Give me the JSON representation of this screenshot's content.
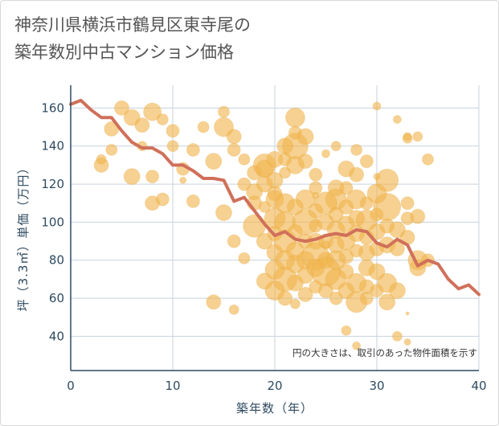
{
  "title": "神奈川県横浜市鶴見区東寺尾の\n築年数別中古マンション価格",
  "chart_data": {
    "type": "scatter",
    "xlabel": "築年数（年）",
    "ylabel": "坪（3.3㎡）単価（万円）",
    "xlim": [
      0,
      40
    ],
    "ylim": [
      22,
      172
    ],
    "xticks": [
      0,
      10,
      20,
      30,
      40
    ],
    "yticks": [
      40,
      60,
      80,
      100,
      120,
      140,
      160
    ],
    "grid": true,
    "note": "円の大きさは、取引のあった物件面積を示す",
    "colors": {
      "bubble": "#f0b54e",
      "line": "#d0705a",
      "grid": "#c8d3de",
      "axis": "#2e4a60"
    },
    "series": [
      {
        "type": "line",
        "x": [
          0,
          1,
          2,
          3,
          4,
          5,
          6,
          7,
          8,
          9,
          10,
          11,
          12,
          13,
          14,
          15,
          16,
          17,
          18,
          19,
          20,
          21,
          22,
          23,
          24,
          25,
          26,
          27,
          28,
          29,
          30,
          31,
          32,
          33,
          34,
          35,
          36,
          37,
          38,
          39,
          40
        ],
        "values": [
          162,
          164,
          159,
          155,
          155,
          148,
          142,
          139,
          139,
          136,
          130,
          130,
          127,
          123,
          123,
          122,
          111,
          113,
          106,
          99,
          93,
          95,
          91,
          90,
          91,
          93,
          94,
          93,
          96,
          95,
          89,
          87,
          91,
          88,
          77,
          80,
          78,
          70,
          65,
          67,
          62
        ]
      },
      {
        "type": "bubble",
        "points": [
          [
            4,
            149,
            9
          ],
          [
            5,
            160,
            9
          ],
          [
            6,
            155,
            10
          ],
          [
            7,
            151,
            9
          ],
          [
            8,
            158,
            11
          ],
          [
            9,
            154,
            7
          ],
          [
            10,
            140,
            7
          ],
          [
            3,
            130,
            9
          ],
          [
            4,
            138,
            7
          ],
          [
            6,
            124,
            10
          ],
          [
            8,
            124,
            8
          ],
          [
            8,
            110,
            9
          ],
          [
            9,
            112,
            8
          ],
          [
            11,
            128,
            8
          ],
          [
            12,
            138,
            8
          ],
          [
            13,
            150,
            7
          ],
          [
            14,
            132,
            10
          ],
          [
            15,
            158,
            7
          ],
          [
            15,
            150,
            12
          ],
          [
            16,
            145,
            9
          ],
          [
            16,
            138,
            8
          ],
          [
            17,
            133,
            7
          ],
          [
            17,
            120,
            8
          ],
          [
            18,
            126,
            9
          ],
          [
            18,
            116,
            10
          ],
          [
            19,
            128,
            11
          ],
          [
            19,
            120,
            10
          ],
          [
            19,
            130,
            14
          ],
          [
            20,
            133,
            10
          ],
          [
            20,
            122,
            10
          ],
          [
            20,
            115,
            9
          ],
          [
            21,
            140,
            10
          ],
          [
            21,
            133,
            8
          ],
          [
            21,
            126,
            7
          ],
          [
            22,
            155,
            12
          ],
          [
            22,
            147,
            8
          ],
          [
            22,
            130,
            11
          ],
          [
            22,
            140,
            16
          ],
          [
            23,
            145,
            10
          ],
          [
            23,
            132,
            9
          ],
          [
            24,
            125,
            8
          ],
          [
            24,
            118,
            8
          ],
          [
            15,
            105,
            10
          ],
          [
            16,
            90,
            8
          ],
          [
            18,
            98,
            14
          ],
          [
            18,
            110,
            9
          ],
          [
            19,
            90,
            10
          ],
          [
            19,
            108,
            7
          ],
          [
            20,
            112,
            11
          ],
          [
            20,
            102,
            13
          ],
          [
            20,
            94,
            9
          ],
          [
            20,
            84,
            10
          ],
          [
            21,
            110,
            12
          ],
          [
            21,
            100,
            13
          ],
          [
            21,
            90,
            14
          ],
          [
            21,
            80,
            12
          ],
          [
            22,
            108,
            10
          ],
          [
            22,
            95,
            9
          ],
          [
            22,
            85,
            11
          ],
          [
            23,
            112,
            12
          ],
          [
            23,
            100,
            16
          ],
          [
            23,
            90,
            9
          ],
          [
            23,
            80,
            11
          ],
          [
            24,
            106,
            9
          ],
          [
            24,
            98,
            8
          ],
          [
            24,
            90,
            10
          ],
          [
            24,
            82,
            17
          ],
          [
            25,
            110,
            14
          ],
          [
            25,
            100,
            10
          ],
          [
            25,
            90,
            9
          ],
          [
            25,
            80,
            10
          ],
          [
            26,
            118,
            10
          ],
          [
            26,
            112,
            13
          ],
          [
            26,
            104,
            9
          ],
          [
            26,
            96,
            11
          ],
          [
            26,
            88,
            10
          ],
          [
            26,
            80,
            12
          ],
          [
            27,
            128,
            10
          ],
          [
            27,
            118,
            8
          ],
          [
            27,
            108,
            9
          ],
          [
            27,
            99,
            10
          ],
          [
            27,
            90,
            11
          ],
          [
            27,
            82,
            9
          ],
          [
            28,
            125,
            9
          ],
          [
            28,
            112,
            12
          ],
          [
            28,
            102,
            10
          ],
          [
            28,
            94,
            10
          ],
          [
            28,
            85,
            8
          ],
          [
            29,
            110,
            8
          ],
          [
            29,
            101,
            13
          ],
          [
            29,
            92,
            9
          ],
          [
            29,
            84,
            10
          ],
          [
            30,
            115,
            12
          ],
          [
            30,
            104,
            8
          ],
          [
            30,
            95,
            10
          ],
          [
            30,
            86,
            9
          ],
          [
            31,
            122,
            14
          ],
          [
            31,
            108,
            17
          ],
          [
            31,
            98,
            9
          ],
          [
            31,
            88,
            10
          ],
          [
            32,
            96,
            10
          ],
          [
            32,
            86,
            9
          ],
          [
            33,
            110,
            8
          ],
          [
            33,
            102,
            8
          ],
          [
            33,
            92,
            9
          ],
          [
            34,
            103,
            9
          ],
          [
            34,
            80,
            12
          ],
          [
            34,
            76,
            10
          ],
          [
            35,
            80,
            8
          ],
          [
            20,
            75,
            12
          ],
          [
            20,
            64,
            12
          ],
          [
            21,
            70,
            15
          ],
          [
            21,
            60,
            9
          ],
          [
            22,
            68,
            10
          ],
          [
            22,
            78,
            11
          ],
          [
            23,
            62,
            9
          ],
          [
            23,
            72,
            10
          ],
          [
            24,
            66,
            8
          ],
          [
            24,
            76,
            11
          ],
          [
            25,
            74,
            18
          ],
          [
            25,
            64,
            9
          ],
          [
            26,
            70,
            13
          ],
          [
            26,
            60,
            8
          ],
          [
            27,
            74,
            9
          ],
          [
            27,
            64,
            10
          ],
          [
            28,
            68,
            12
          ],
          [
            28,
            58,
            13
          ],
          [
            29,
            76,
            10
          ],
          [
            29,
            66,
            9
          ],
          [
            29,
            60,
            8
          ],
          [
            30,
            74,
            10
          ],
          [
            30,
            64,
            8
          ],
          [
            31,
            68,
            12
          ],
          [
            31,
            58,
            10
          ],
          [
            32,
            64,
            10
          ],
          [
            27,
            43,
            6
          ],
          [
            28,
            35,
            5
          ],
          [
            32,
            40,
            6
          ],
          [
            28,
            138,
            7
          ],
          [
            29,
            132,
            8
          ],
          [
            30,
            161,
            5
          ],
          [
            32,
            154,
            5
          ],
          [
            33,
            144,
            6
          ],
          [
            33,
            145,
            5
          ],
          [
            34,
            145,
            6
          ],
          [
            35,
            133,
            7
          ],
          [
            24,
            114,
            4
          ],
          [
            25,
            136,
            5
          ],
          [
            26,
            140,
            6
          ],
          [
            22,
            57,
            6
          ],
          [
            14,
            58,
            9
          ],
          [
            16,
            54,
            6
          ],
          [
            33,
            52,
            2
          ],
          [
            33,
            37,
            4
          ],
          [
            11,
            122,
            4
          ],
          [
            12,
            111,
            8
          ],
          [
            3,
            133,
            6
          ],
          [
            7,
            140,
            6
          ],
          [
            10,
            148,
            8
          ],
          [
            19,
            69,
            10
          ],
          [
            17,
            81,
            7
          ],
          [
            25,
            88,
            5
          ],
          [
            30,
            124,
            4
          ]
        ]
      }
    ]
  }
}
